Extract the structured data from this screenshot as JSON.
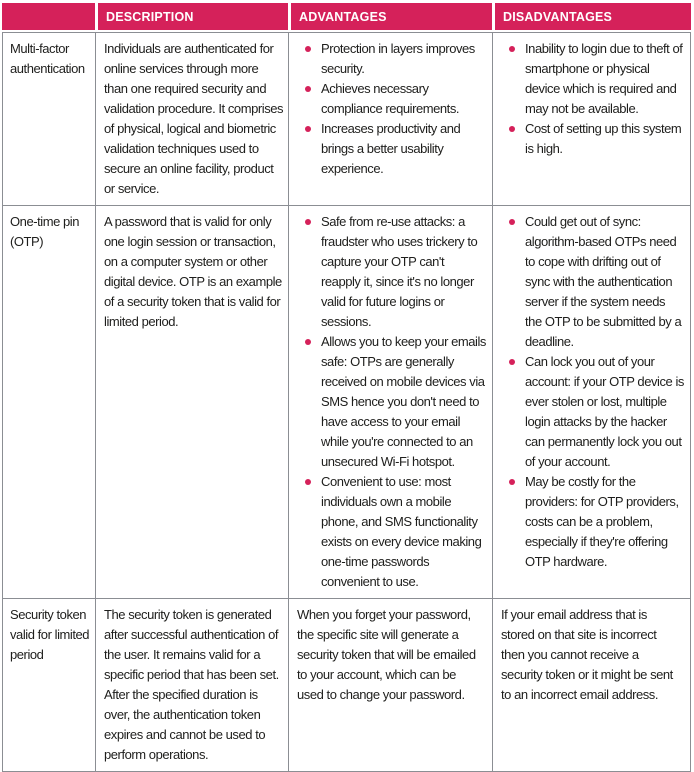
{
  "colors": {
    "accent": "#d5215a",
    "border": "#8b8e93",
    "header_text": "#ffffff",
    "body_text": "#1e1e1c"
  },
  "table": {
    "headers": [
      "",
      "DESCRIPTION",
      "ADVANTAGES",
      "DISADVANTAGES"
    ],
    "rows": [
      {
        "term": "Multi-factor authentication",
        "description": "Individuals are authenticated for online services through more than one required security and validation procedure. It comprises of physical, logical and biometric validation techniques used to secure an online facility, product or service.",
        "advantages": {
          "bulleted": true,
          "items": [
            "Protection in layers improves security.",
            "Achieves necessary compliance requirements.",
            "Increases productivity and brings a better usability experience."
          ]
        },
        "disadvantages": {
          "bulleted": true,
          "items": [
            "Inability to login due to theft of smartphone or physical device which is required and may not be available.",
            "Cost of setting up this system is high."
          ]
        }
      },
      {
        "term": "One-time pin (OTP)",
        "description": "A password that is valid for only one login session or transaction, on a computer system or other digital device. OTP is an example of a security token that is valid for limited period.",
        "advantages": {
          "bulleted": true,
          "items": [
            "Safe from re-use attacks: a fraudster who uses trickery to capture your OTP can't reapply it, since it's no longer valid for future logins or sessions.",
            "Allows you to keep your emails safe: OTPs are generally received on mobile devices via SMS hence you don't need to have access to your email while you're connected to an unsecured Wi-Fi hotspot.",
            "Convenient to use: most individuals own a mobile phone, and SMS functionality exists on every device making one-time passwords convenient to use."
          ]
        },
        "disadvantages": {
          "bulleted": true,
          "items": [
            "Could get out of sync: algorithm-based OTPs need to cope with drifting out of sync with the authentication server if the system needs the OTP to be submitted by a deadline.",
            "Can lock you out of your account: if your OTP device is ever stolen or lost, multiple login attacks by the hacker can permanently lock you out of your account.",
            "May be costly for the providers: for OTP providers, costs can be a problem, especially if they're offering OTP hardware."
          ]
        }
      },
      {
        "term": "Security token valid for limited period",
        "description": "The security token is generated after successful authentication of the user. It remains valid for a specific period that has been set. After the specified duration is over, the authentication token expires and cannot be used to perform operations.",
        "advantages": {
          "bulleted": false,
          "items": [
            "When you forget your password, the specific site will generate a security token that will be emailed to your account, which can be used to change your password."
          ]
        },
        "disadvantages": {
          "bulleted": false,
          "items": [
            "If your email address that is stored on that site is incorrect then you cannot receive a security token or it might be sent to an incorrect email address."
          ]
        }
      }
    ]
  }
}
